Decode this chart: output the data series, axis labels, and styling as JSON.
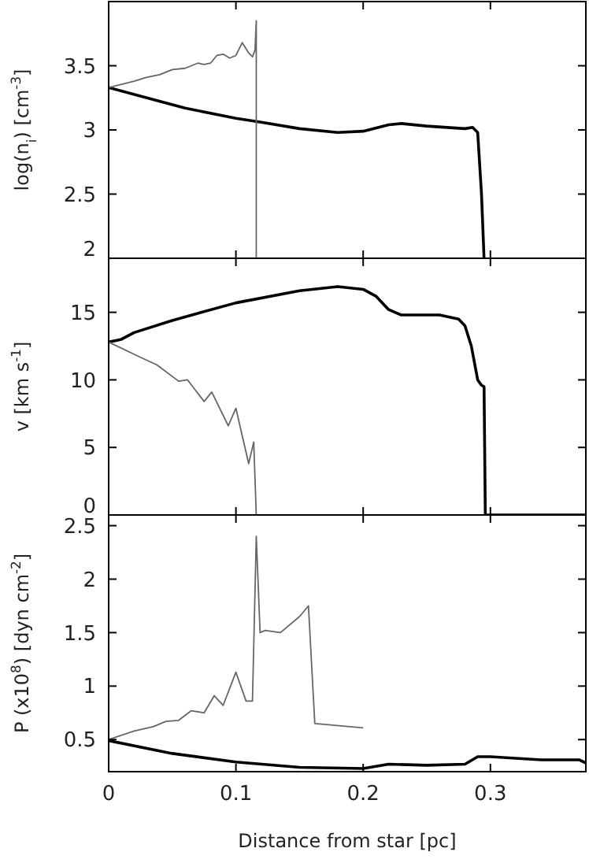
{
  "chart_data": [
    {
      "type": "line",
      "ylabel": "log(n$_{i}$) [cm$^{-3}$]",
      "xlim": [
        0,
        0.375
      ],
      "xticks": [
        0,
        0.1,
        0.2,
        0.3
      ],
      "ylim": [
        2,
        4
      ],
      "yticks": [
        2,
        2.5,
        3,
        3.5
      ],
      "tick_labels": "y",
      "grid": false,
      "marker": "none",
      "series": [
        {
          "color": "#000000",
          "x": [
            0,
            0.03,
            0.06,
            0.1,
            0.12,
            0.15,
            0.18,
            0.2,
            0.22,
            0.23,
            0.25,
            0.28,
            0.286,
            0.29,
            0.293,
            0.295
          ],
          "values": [
            3.33,
            3.25,
            3.17,
            3.09,
            3.06,
            3.01,
            2.98,
            2.99,
            3.04,
            3.05,
            3.03,
            3.01,
            3.02,
            2.98,
            2.5,
            2.0
          ]
        },
        {
          "color": "#666666",
          "x": [
            0,
            0.02,
            0.03,
            0.04,
            0.05,
            0.06,
            0.07,
            0.075,
            0.08,
            0.085,
            0.09,
            0.095,
            0.1,
            0.105,
            0.11,
            0.113,
            0.115,
            0.116,
            0.116
          ],
          "values": [
            3.33,
            3.38,
            3.41,
            3.43,
            3.47,
            3.48,
            3.52,
            3.51,
            3.52,
            3.58,
            3.59,
            3.56,
            3.58,
            3.68,
            3.6,
            3.57,
            3.62,
            3.85,
            2.0
          ]
        }
      ]
    },
    {
      "type": "line",
      "ylabel": "v [km s$^{-1}$]",
      "xlim": [
        0,
        0.375
      ],
      "xticks": [
        0,
        0.1,
        0.2,
        0.3
      ],
      "ylim": [
        0,
        19
      ],
      "yticks": [
        0,
        5,
        10,
        15
      ],
      "tick_labels": "y",
      "grid": false,
      "marker": "none",
      "series": [
        {
          "color": "#000000",
          "x": [
            0,
            0.01,
            0.02,
            0.05,
            0.1,
            0.15,
            0.18,
            0.2,
            0.21,
            0.22,
            0.23,
            0.26,
            0.275,
            0.28,
            0.285,
            0.29,
            0.293,
            0.295,
            0.296,
            0.375
          ],
          "values": [
            12.8,
            13.0,
            13.5,
            14.4,
            15.7,
            16.6,
            16.9,
            16.7,
            16.2,
            15.2,
            14.8,
            14.8,
            14.5,
            14.0,
            12.5,
            10,
            9.6,
            9.5,
            0,
            0
          ]
        },
        {
          "color": "#666666",
          "x": [
            0,
            0.022,
            0.038,
            0.055,
            0.062,
            0.075,
            0.081,
            0.094,
            0.1,
            0.11,
            0.114,
            0.116
          ],
          "values": [
            12.8,
            11.8,
            11.1,
            9.9,
            10.0,
            8.4,
            9.1,
            6.6,
            7.9,
            3.8,
            5.4,
            0
          ]
        }
      ]
    },
    {
      "type": "line",
      "ylabel": "P (x10$^{8}$) [dyn cm$^{-2}$]",
      "xlabel": "Distance from star [pc]",
      "xlim": [
        0,
        0.375
      ],
      "xticks": [
        0,
        0.1,
        0.2,
        0.3
      ],
      "ylim": [
        0.2,
        2.6
      ],
      "yticks": [
        0.5,
        1,
        1.5,
        2,
        2.5
      ],
      "grid": false,
      "marker": "none",
      "series": [
        {
          "color": "#000000",
          "x": [
            0,
            0.05,
            0.1,
            0.15,
            0.2,
            0.22,
            0.25,
            0.28,
            0.29,
            0.3,
            0.34,
            0.37,
            0.375
          ],
          "values": [
            0.49,
            0.37,
            0.29,
            0.24,
            0.23,
            0.27,
            0.26,
            0.27,
            0.34,
            0.34,
            0.31,
            0.31,
            0.28
          ]
        },
        {
          "color": "#666666",
          "x": [
            0,
            0.02,
            0.035,
            0.045,
            0.055,
            0.065,
            0.075,
            0.083,
            0.09,
            0.1,
            0.108,
            0.113,
            0.116,
            0.119,
            0.123,
            0.135,
            0.15,
            0.157,
            0.162,
            0.2
          ],
          "values": [
            0.5,
            0.58,
            0.62,
            0.67,
            0.68,
            0.77,
            0.75,
            0.91,
            0.82,
            1.13,
            0.86,
            0.86,
            2.4,
            1.5,
            1.52,
            1.5,
            1.65,
            1.75,
            0.65,
            0.61
          ]
        }
      ]
    }
  ]
}
